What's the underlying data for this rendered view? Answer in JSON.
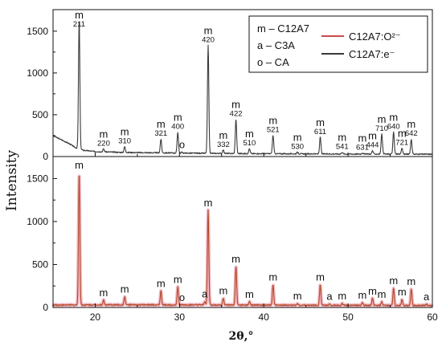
{
  "chart_data": {
    "type": "line",
    "xlabel": "2θ,°",
    "ylabel": "Intensity",
    "xlim": [
      15,
      60
    ],
    "xticks": [
      20,
      30,
      40,
      50,
      60
    ],
    "panels": [
      {
        "id": "top",
        "series_name": "C12A7:e⁻",
        "ylim": [
          0,
          1700
        ],
        "yticks": [
          0,
          500,
          1000,
          1500
        ],
        "baseline": [
          [
            15,
            250
          ],
          [
            16,
            200
          ],
          [
            17,
            150
          ],
          [
            17.6,
            110
          ],
          [
            18.6,
            75
          ],
          [
            20,
            60
          ],
          [
            23,
            50
          ],
          [
            27,
            45
          ],
          [
            32,
            40
          ],
          [
            38,
            35
          ],
          [
            45,
            32
          ],
          [
            52,
            30
          ],
          [
            56,
            30
          ],
          [
            60,
            28
          ]
        ],
        "peaks": [
          {
            "x": 18.1,
            "y": 1560,
            "letter": "m",
            "hkl": "211"
          },
          {
            "x": 21.0,
            "y": 35,
            "letter": "m",
            "hkl": "220"
          },
          {
            "x": 23.5,
            "y": 70,
            "letter": "m",
            "hkl": "310"
          },
          {
            "x": 27.8,
            "y": 165,
            "letter": "m",
            "hkl": "321"
          },
          {
            "x": 29.8,
            "y": 250,
            "letter": "m",
            "hkl": "400"
          },
          {
            "x": 30.3,
            "y": 10,
            "letter": "o",
            "hkl": ""
          },
          {
            "x": 33.4,
            "y": 1290,
            "letter": "m",
            "hkl": "420"
          },
          {
            "x": 35.2,
            "y": 40,
            "letter": "m",
            "hkl": "332"
          },
          {
            "x": 36.7,
            "y": 410,
            "letter": "m",
            "hkl": "422"
          },
          {
            "x": 38.3,
            "y": 60,
            "letter": "m",
            "hkl": "510"
          },
          {
            "x": 41.1,
            "y": 220,
            "letter": "m",
            "hkl": "521"
          },
          {
            "x": 44.0,
            "y": 20,
            "letter": "m",
            "hkl": "530"
          },
          {
            "x": 46.7,
            "y": 200,
            "letter": "m",
            "hkl": "611"
          },
          {
            "x": 49.3,
            "y": 20,
            "letter": "m",
            "hkl": "541"
          },
          {
            "x": 51.7,
            "y": 15,
            "letter": "m",
            "hkl": "631"
          },
          {
            "x": 52.9,
            "y": 40,
            "letter": "m",
            "hkl": "444"
          },
          {
            "x": 54.0,
            "y": 240,
            "letter": "m",
            "hkl": "710"
          },
          {
            "x": 55.4,
            "y": 265,
            "letter": "m",
            "hkl": "640"
          },
          {
            "x": 56.4,
            "y": 70,
            "letter": "m",
            "hkl": "721"
          },
          {
            "x": 57.5,
            "y": 180,
            "letter": "m",
            "hkl": "642"
          }
        ]
      },
      {
        "id": "bottom",
        "series_name": "C12A7:O²⁻",
        "ylim": [
          0,
          1700
        ],
        "yticks": [
          0,
          500,
          1000,
          1500
        ],
        "baseline": [
          [
            15,
            28
          ],
          [
            20,
            30
          ],
          [
            30,
            30
          ],
          [
            40,
            27
          ],
          [
            50,
            25
          ],
          [
            60,
            22
          ]
        ],
        "peaks": [
          {
            "x": 18.1,
            "y": 1540,
            "letter": "m",
            "hkl": ""
          },
          {
            "x": 21.0,
            "y": 55,
            "letter": "m",
            "hkl": ""
          },
          {
            "x": 23.5,
            "y": 95,
            "letter": "m",
            "hkl": ""
          },
          {
            "x": 27.8,
            "y": 160,
            "letter": "m",
            "hkl": ""
          },
          {
            "x": 29.8,
            "y": 210,
            "letter": "m",
            "hkl": ""
          },
          {
            "x": 30.3,
            "y": 0,
            "letter": "o",
            "hkl": ""
          },
          {
            "x": 33.0,
            "y": 40,
            "letter": "a",
            "hkl": ""
          },
          {
            "x": 33.4,
            "y": 1100,
            "letter": "m",
            "hkl": ""
          },
          {
            "x": 35.2,
            "y": 80,
            "letter": "m",
            "hkl": ""
          },
          {
            "x": 36.7,
            "y": 450,
            "letter": "m",
            "hkl": ""
          },
          {
            "x": 38.3,
            "y": 40,
            "letter": "m",
            "hkl": ""
          },
          {
            "x": 41.1,
            "y": 240,
            "letter": "m",
            "hkl": ""
          },
          {
            "x": 44.0,
            "y": 20,
            "letter": "m",
            "hkl": ""
          },
          {
            "x": 46.7,
            "y": 240,
            "letter": "m",
            "hkl": ""
          },
          {
            "x": 47.8,
            "y": 15,
            "letter": "a",
            "hkl": ""
          },
          {
            "x": 49.3,
            "y": 20,
            "letter": "m",
            "hkl": ""
          },
          {
            "x": 51.7,
            "y": 30,
            "letter": "m",
            "hkl": ""
          },
          {
            "x": 52.9,
            "y": 80,
            "letter": "m",
            "hkl": ""
          },
          {
            "x": 54.0,
            "y": 40,
            "letter": "m",
            "hkl": ""
          },
          {
            "x": 55.4,
            "y": 200,
            "letter": "m",
            "hkl": ""
          },
          {
            "x": 56.4,
            "y": 70,
            "letter": "m",
            "hkl": ""
          },
          {
            "x": 57.5,
            "y": 190,
            "letter": "m",
            "hkl": ""
          },
          {
            "x": 59.3,
            "y": 15,
            "letter": "a",
            "hkl": ""
          }
        ]
      }
    ],
    "legend_phases": [
      "m – C12A7",
      "a – C3A",
      "o – CA"
    ],
    "legend_series": [
      "C12A7:O²⁻",
      "C12A7:e⁻"
    ],
    "colors": {
      "top_line": "#3a3a3a",
      "bottom_line": "#b04a2a",
      "bottom_glow": "#f3b8c2",
      "legend_red": "#c94a4a",
      "axis": "#111111"
    }
  }
}
